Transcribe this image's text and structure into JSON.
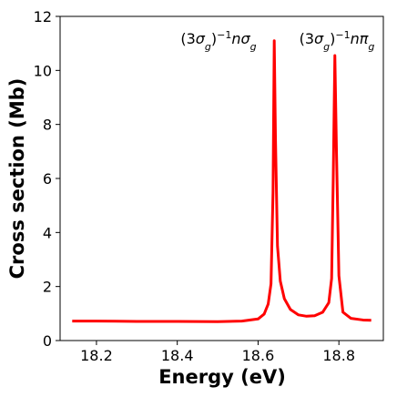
{
  "chart_data": {
    "type": "line",
    "xlabel": "Energy (eV)",
    "ylabel": "Cross section (Mb)",
    "xlim": [
      18.11,
      18.91
    ],
    "ylim": [
      0,
      12
    ],
    "x_ticks": [
      18.2,
      18.4,
      18.6,
      18.8
    ],
    "x_tick_labels": [
      "18.2",
      "18.4",
      "18.6",
      "18.8"
    ],
    "y_ticks": [
      0,
      2,
      4,
      6,
      8,
      10,
      12
    ],
    "y_tick_labels": [
      "0",
      "2",
      "4",
      "6",
      "8",
      "10",
      "12"
    ],
    "grid": false,
    "series": [
      {
        "color": "#ff0000",
        "x": [
          18.14,
          18.2,
          18.3,
          18.4,
          18.5,
          18.56,
          18.6,
          18.615,
          18.625,
          18.632,
          18.637,
          18.64,
          18.643,
          18.648,
          18.655,
          18.665,
          18.68,
          18.7,
          18.72,
          18.74,
          18.76,
          18.775,
          18.782,
          18.786,
          18.79,
          18.794,
          18.8,
          18.81,
          18.83,
          18.86,
          18.88
        ],
        "y": [
          0.72,
          0.72,
          0.71,
          0.71,
          0.7,
          0.72,
          0.8,
          0.98,
          1.35,
          2.1,
          5.5,
          11.1,
          7.5,
          3.5,
          2.2,
          1.55,
          1.15,
          0.95,
          0.9,
          0.92,
          1.05,
          1.4,
          2.3,
          6.0,
          10.55,
          7.0,
          2.4,
          1.05,
          0.82,
          0.76,
          0.75
        ]
      }
    ],
    "annotations": [
      {
        "x": 18.64,
        "y": 11.3,
        "parts": [
          "(3",
          "σ",
          "g",
          ")",
          "−1",
          "n",
          "σ",
          "g"
        ]
      },
      {
        "x": 18.795,
        "y": 11.3,
        "parts": [
          "(3",
          "σ",
          "g",
          ")",
          "−1",
          "n",
          "π",
          "g"
        ]
      }
    ]
  }
}
